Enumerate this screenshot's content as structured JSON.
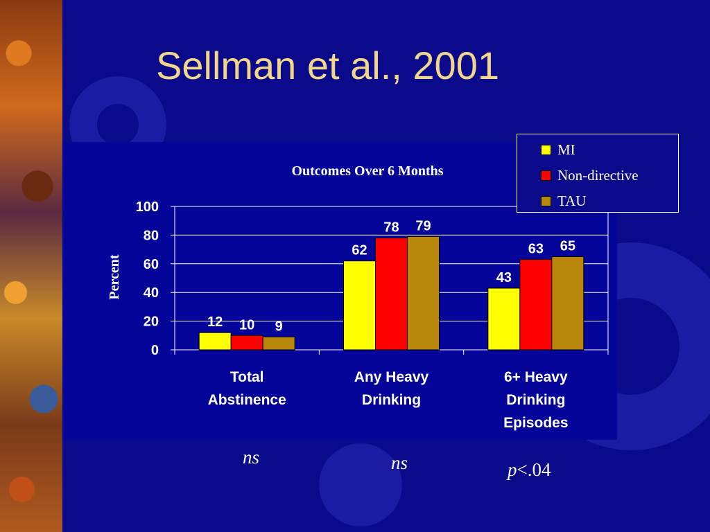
{
  "slide": {
    "title": "Sellman et al., 2001"
  },
  "chart_data": {
    "type": "bar",
    "title": "Outcomes Over 6 Months",
    "ylabel": "Percent",
    "xlabel": "",
    "ylim": [
      0,
      100
    ],
    "yticks": [
      0,
      20,
      40,
      60,
      80,
      100
    ],
    "grid": true,
    "legend_position": "top-right",
    "categories": [
      [
        "Total",
        "Abstinence"
      ],
      [
        "Any Heavy",
        "Drinking"
      ],
      [
        "6+ Heavy",
        "Drinking",
        "Episodes"
      ]
    ],
    "series": [
      {
        "name": "MI",
        "color": "#ffff00",
        "values": [
          12,
          62,
          43
        ]
      },
      {
        "name": "Non-directive",
        "color": "#ff0000",
        "values": [
          10,
          78,
          63
        ]
      },
      {
        "name": "TAU",
        "color": "#b8860b",
        "values": [
          9,
          79,
          65
        ]
      }
    ]
  },
  "significance": [
    {
      "italic": "ns",
      "rest": ""
    },
    {
      "italic": "ns",
      "rest": ""
    },
    {
      "italic": "p",
      "rest": "<.04"
    }
  ],
  "colors": {
    "background": "#0a0a8a",
    "title": "#f2d78a",
    "text": "#ffffff"
  },
  "icons": {
    "background_decoration": "gear-icon"
  }
}
